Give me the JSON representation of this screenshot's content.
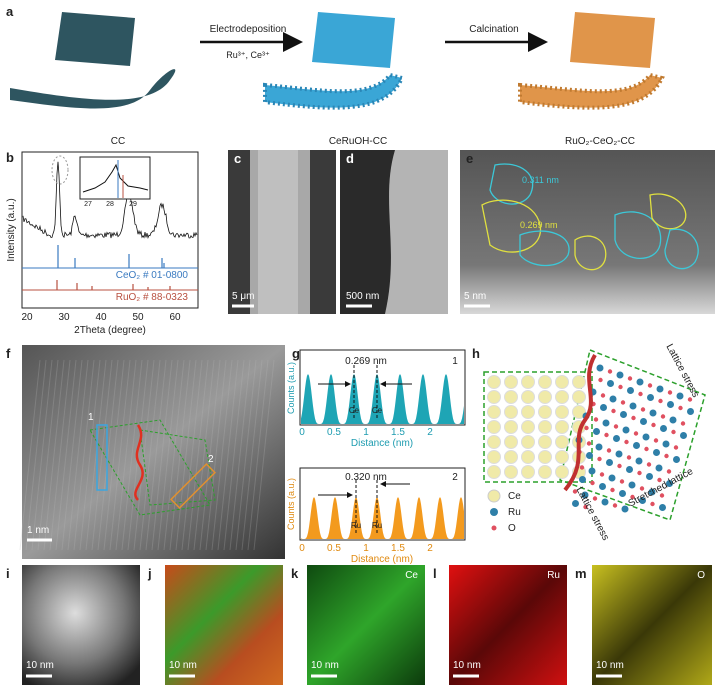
{
  "panel_a": {
    "label": "a",
    "step1": "Electrodeposition",
    "step1_ions": "Ru³⁺, Ce³⁺",
    "step2": "Calcination",
    "samples": [
      "CC",
      "CeRuOH-CC",
      "RuO₂-CeO₂-CC"
    ]
  },
  "panel_b": {
    "label": "b",
    "y_axis": "Intensity (a.u.)",
    "x_axis": "2Theta (degree)",
    "x_ticks": [
      "20",
      "30",
      "40",
      "50",
      "60"
    ],
    "inset_ticks": [
      "27",
      "28",
      "29"
    ],
    "ref1": "CeO₂ # 01-0800",
    "ref2": "RuO₂ # 88-0323"
  },
  "panel_c": {
    "label": "c",
    "scale": "5 μm"
  },
  "panel_d": {
    "label": "d",
    "scale": "500 nm"
  },
  "panel_e": {
    "label": "e",
    "spacing1": "0.311 nm",
    "spacing2": "0.269 nm",
    "scale": "5 nm"
  },
  "panel_f": {
    "label": "f",
    "box1": "1",
    "box2": "2",
    "scale": "1 nm"
  },
  "panel_g": {
    "label": "g",
    "y_axis": "Counts (a.u.)",
    "x_axis": "Distance (nm)",
    "x_ticks": [
      "0",
      "0.5",
      "1",
      "1.5",
      "2"
    ],
    "top": {
      "spacing": "0.269 nm",
      "id": "1",
      "atoms": [
        "Ce",
        "Ce"
      ]
    },
    "bottom": {
      "spacing": "0.320 nm",
      "id": "2",
      "atoms": [
        "Ru",
        "Ru"
      ]
    }
  },
  "panel_h": {
    "label": "h",
    "stress_top": "Lattice stress",
    "stretched": "Stretched lattice",
    "stress_bottom": "Lattice stress",
    "legend": [
      "Ce",
      "Ru",
      "O"
    ]
  },
  "panel_i": {
    "label": "i",
    "scale": "10 nm"
  },
  "panel_j": {
    "label": "j",
    "scale": "10 nm"
  },
  "panel_k": {
    "label": "k",
    "element": "Ce",
    "scale": "10 nm"
  },
  "panel_l": {
    "label": "l",
    "element": "Ru",
    "scale": "10 nm"
  },
  "panel_m": {
    "label": "m",
    "element": "O",
    "scale": "10 nm"
  }
}
